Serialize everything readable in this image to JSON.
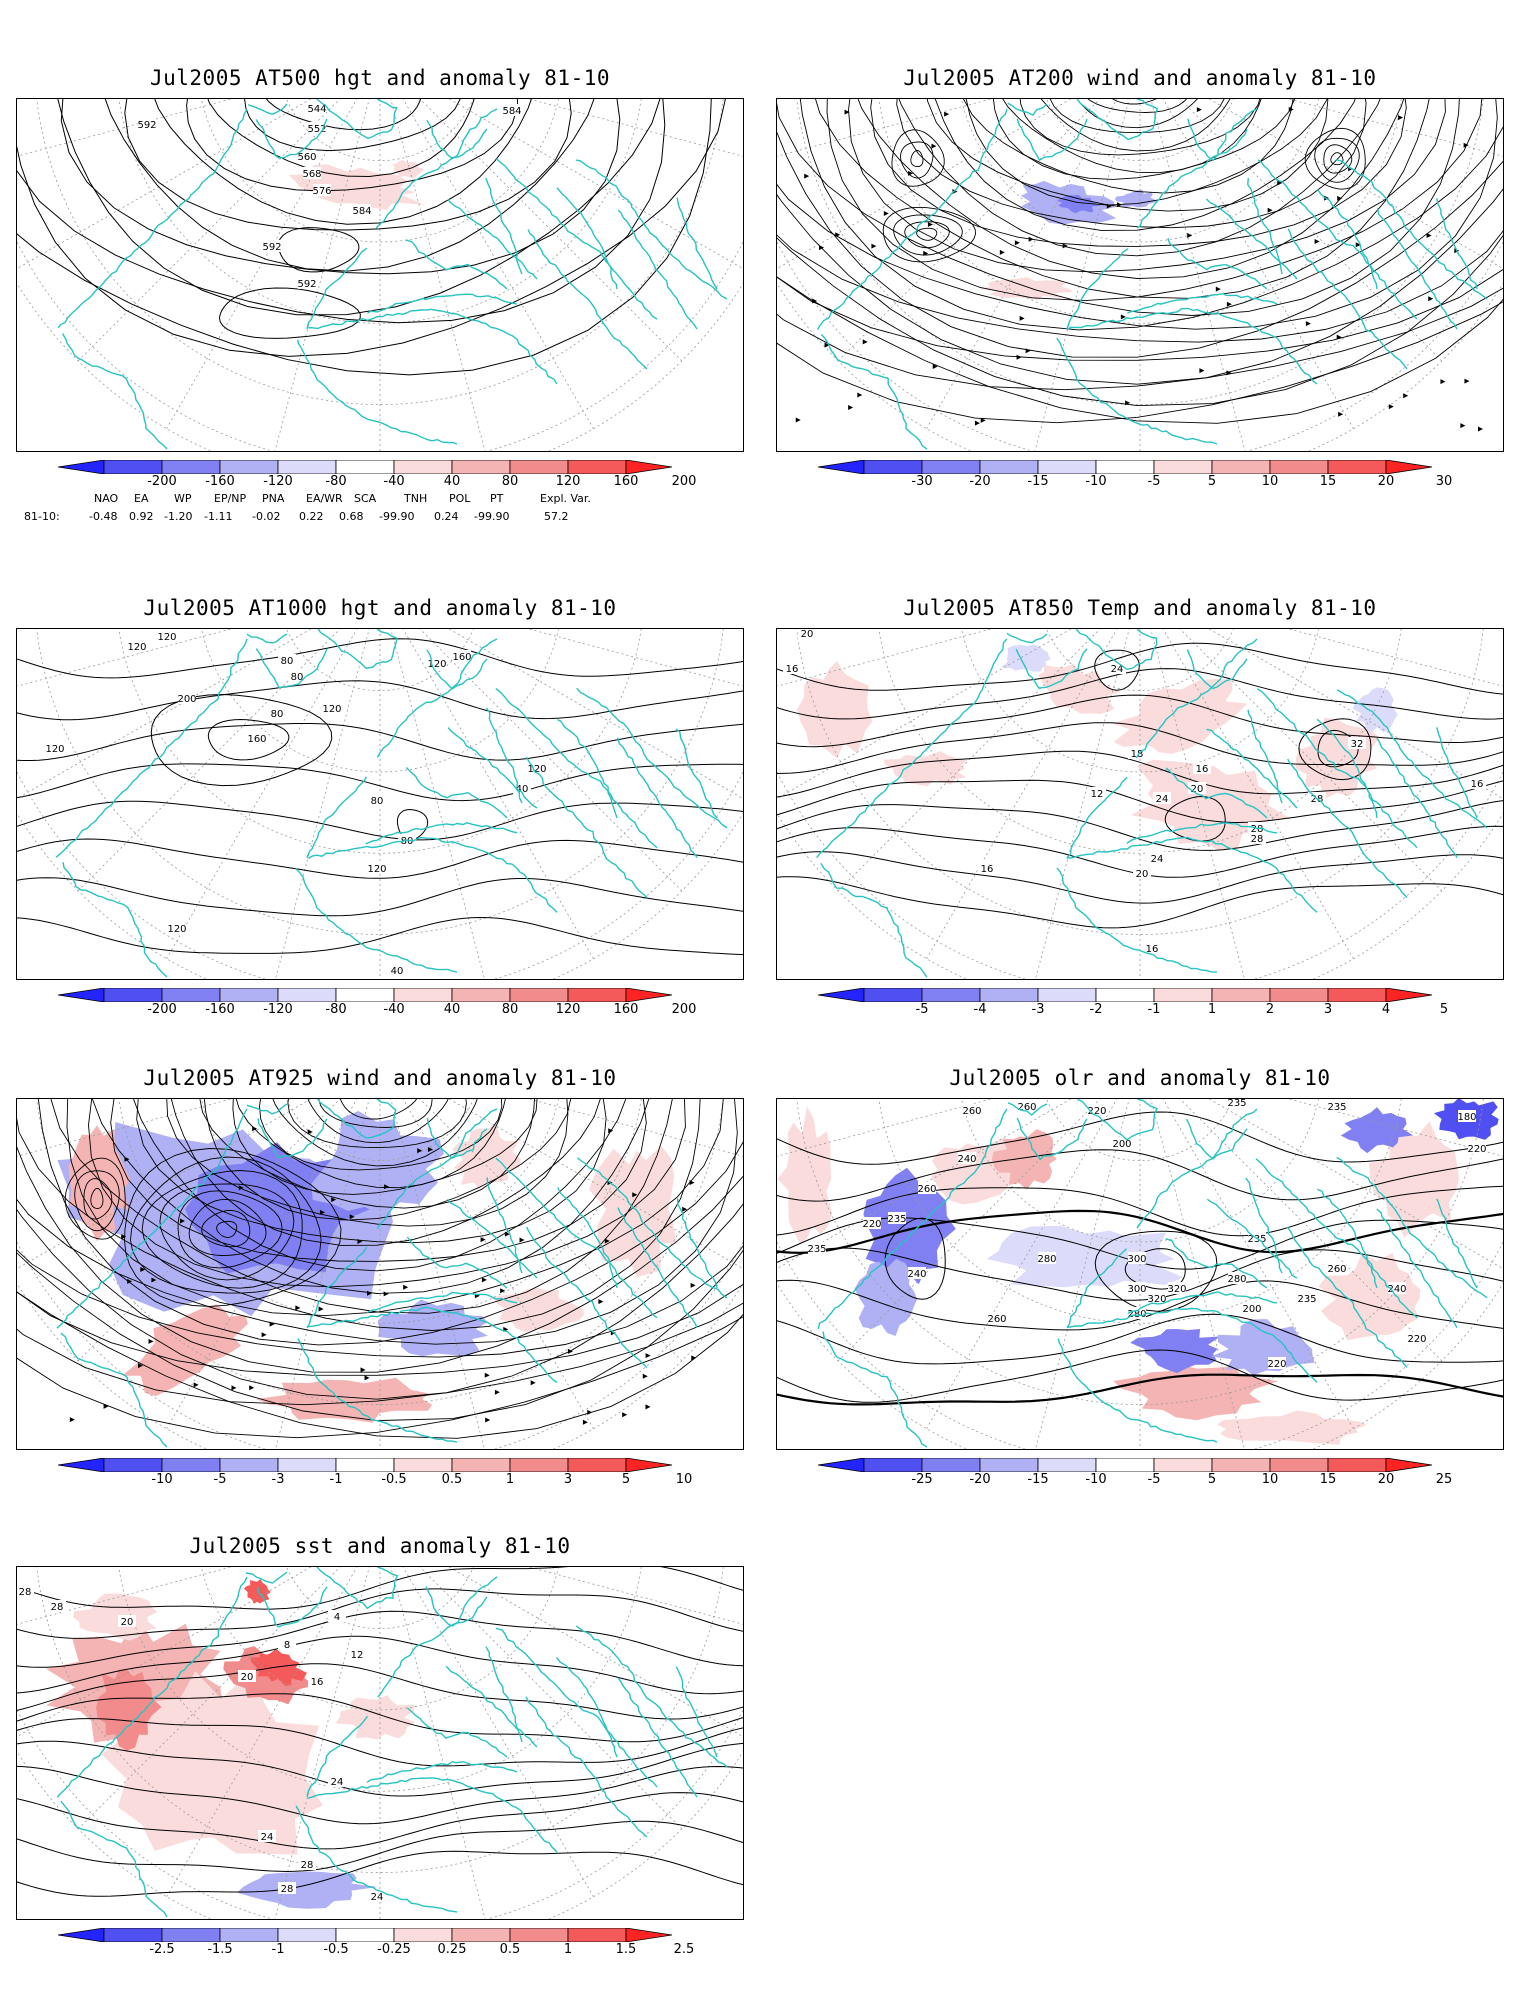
{
  "panels": [
    {
      "id": "p1",
      "title": "Jul2005 AT500 hgt and anomaly 81-10",
      "kind": "hgt500",
      "contour_labels": [
        "544",
        "552",
        "560",
        "568",
        "576",
        "584",
        "592",
        "592",
        "592",
        "584"
      ],
      "colorbar": [
        "-200",
        "-160",
        "-120",
        "-80",
        "-40",
        "40",
        "80",
        "120",
        "160",
        "200"
      ]
    },
    {
      "id": "p2",
      "title": "Jul2005 AT200 wind and anomaly 81-10",
      "kind": "wind200",
      "contour_labels": [],
      "colorbar": [
        "-30",
        "-20",
        "-15",
        "-10",
        "-5",
        "5",
        "10",
        "15",
        "20",
        "30"
      ]
    },
    {
      "id": "p3",
      "title": "Jul2005 AT1000 hgt and anomaly 81-10",
      "kind": "hgt1000",
      "contour_labels": [
        "120",
        "120",
        "80",
        "80",
        "80",
        "120",
        "160",
        "200",
        "120",
        "160",
        "120",
        "80",
        "80",
        "40",
        "120",
        "120",
        "120",
        "40"
      ],
      "colorbar": [
        "-200",
        "-160",
        "-120",
        "-80",
        "-40",
        "40",
        "80",
        "120",
        "160",
        "200"
      ]
    },
    {
      "id": "p4",
      "title": "Jul2005 AT850 Temp and anomaly 81-10",
      "kind": "temp850",
      "contour_labels": [
        "20",
        "16",
        "24",
        "18",
        "12",
        "16",
        "20",
        "24",
        "28",
        "32",
        "28",
        "16",
        "28",
        "24",
        "20",
        "16",
        "16"
      ],
      "colorbar": [
        "-5",
        "-4",
        "-3",
        "-2",
        "-1",
        "1",
        "2",
        "3",
        "4",
        "5"
      ]
    },
    {
      "id": "p5",
      "title": "Jul2005 AT925 wind and anomaly 81-10",
      "kind": "wind925",
      "contour_labels": [],
      "colorbar": [
        "-10",
        "-5",
        "-3",
        "-1",
        "-0.5",
        "0.5",
        "1",
        "3",
        "5",
        "10"
      ]
    },
    {
      "id": "p6",
      "title": "Jul2005 olr and anomaly 81-10",
      "kind": "olr",
      "contour_labels": [
        "260",
        "260",
        "220",
        "235",
        "235",
        "180",
        "220",
        "200",
        "240",
        "235",
        "260",
        "220",
        "235",
        "240",
        "280",
        "300",
        "320",
        "260",
        "280",
        "235",
        "300",
        "320",
        "280",
        "200",
        "235",
        "220",
        "260",
        "240",
        "220"
      ],
      "colorbar": [
        "-25",
        "-20",
        "-15",
        "-10",
        "-5",
        "5",
        "10",
        "15",
        "20",
        "25"
      ]
    },
    {
      "id": "p7",
      "title": "Jul2005 sst and anomaly 81-10",
      "kind": "sst",
      "contour_labels": [
        "28",
        "28",
        "20",
        "4",
        "8",
        "12",
        "16",
        "20",
        "24",
        "24",
        "28",
        "28",
        "24"
      ],
      "colorbar": [
        "-2.5",
        "-1.5",
        "-1",
        "-0.5",
        "-0.25",
        "0.25",
        "0.5",
        "1",
        "1.5",
        "2.5"
      ]
    }
  ],
  "teleconnection": {
    "headers": [
      "NAO",
      "EA",
      "WP",
      "EP/NP",
      "PNA",
      "EA/WR",
      "SCA",
      "TNH",
      "POL",
      "PT",
      "Expl. Var."
    ],
    "row_label": "81-10:",
    "values": [
      "-0.48",
      "0.92",
      "-1.20",
      "-1.11",
      "-0.02",
      "0.22",
      "0.68",
      "-99.90",
      "0.24",
      "-99.90",
      "57.2"
    ]
  },
  "colors": {
    "coast": "#27c3c3",
    "contour": "#000000",
    "grid": "#9a9a9a",
    "blues": [
      "#2424ff",
      "#5050f2",
      "#8080f2",
      "#b0b0f5",
      "#dcdcfa"
    ],
    "reds": [
      "#fadcdc",
      "#f5b4b4",
      "#f28c8c",
      "#f55a5a",
      "#ff2424"
    ]
  }
}
